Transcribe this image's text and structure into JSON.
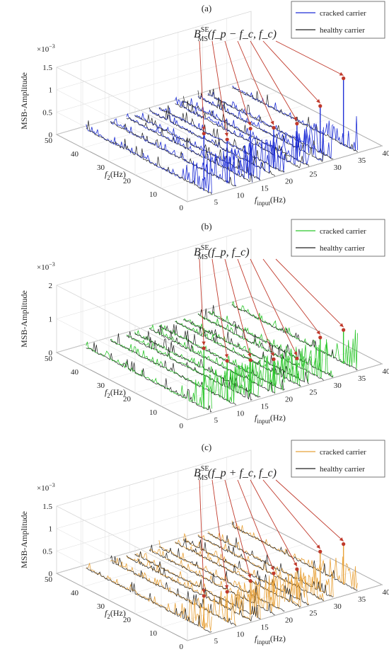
{
  "chart_data": [
    {
      "type": "3d-waterfall-line",
      "title": "(a)",
      "annotation": {
        "base": "B",
        "sup": "SE",
        "sub": "MS",
        "args": "(f_p − f_c, f_c)"
      },
      "zlabel": "MSB-Amplitude",
      "zscale": "×10^-3",
      "z_ticks": [
        "0",
        "0.5",
        "1",
        "1.5"
      ],
      "zlim": [
        0,
        1.5
      ],
      "y_label_main": "f",
      "y_label_sub": "2",
      "y_label_unit": "(Hz)",
      "y_ticks": [
        "0",
        "10",
        "20",
        "30",
        "40",
        "50"
      ],
      "x_label_main": "f",
      "x_label_sub": "input",
      "x_label_unit": "(Hz)",
      "x_ticks": [
        "5",
        "10",
        "15",
        "20",
        "25",
        "30",
        "35",
        "40"
      ],
      "f_input_slices": [
        5,
        10,
        13.3,
        15,
        18,
        20,
        23.3,
        25,
        28,
        30,
        35
      ],
      "series": [
        {
          "name": "cracked carrier",
          "color": "#1f2fd6"
        },
        {
          "name": "healthy carrier",
          "color": "#222222"
        }
      ],
      "peak_slices": [
        5,
        10,
        15,
        20,
        25,
        30,
        35
      ],
      "peak_values": [
        0.85,
        0.65,
        0.7,
        0.6,
        0.55,
        0.7,
        1.0
      ]
    },
    {
      "type": "3d-waterfall-line",
      "title": "(b)",
      "annotation": {
        "base": "B",
        "sup": "SE",
        "sub": "MS",
        "args": "(f_p, f_c)"
      },
      "zlabel": "MSB-Amplitude",
      "zscale": "×10^-3",
      "z_ticks": [
        "0",
        "1",
        "2"
      ],
      "zlim": [
        0,
        2
      ],
      "y_label_main": "f",
      "y_label_sub": "2",
      "y_label_unit": "(Hz)",
      "y_ticks": [
        "0",
        "10",
        "20",
        "30",
        "40",
        "50"
      ],
      "x_label_main": "f",
      "x_label_sub": "input",
      "x_label_unit": "(Hz)",
      "x_ticks": [
        "5",
        "10",
        "15",
        "20",
        "25",
        "30",
        "35",
        "40"
      ],
      "f_input_slices": [
        5,
        10,
        13.3,
        15,
        18,
        20,
        23.3,
        25,
        28,
        30,
        35
      ],
      "series": [
        {
          "name": "cracked carrier",
          "color": "#2bc62b"
        },
        {
          "name": "healthy carrier",
          "color": "#222222"
        }
      ],
      "peak_slices": [
        5,
        10,
        15,
        20,
        25,
        30,
        35
      ],
      "peak_values": [
        0.9,
        0.6,
        0.5,
        0.4,
        0.3,
        0.5,
        0.5
      ]
    },
    {
      "type": "3d-waterfall-line",
      "title": "(c)",
      "annotation": {
        "base": "B",
        "sup": "SE",
        "sub": "MS",
        "args": "(f_p + f_c, f_c)"
      },
      "zlabel": "MSB-Amplitude",
      "zscale": "×10^-3",
      "z_ticks": [
        "0",
        "0.5",
        "1",
        "1.5"
      ],
      "zlim": [
        0,
        1.5
      ],
      "y_label_main": "f",
      "y_label_sub": "2",
      "y_label_unit": "(Hz)",
      "y_ticks": [
        "0",
        "10",
        "20",
        "30",
        "40",
        "50"
      ],
      "x_label_main": "f",
      "x_label_sub": "input",
      "x_label_unit": "(Hz)",
      "x_ticks": [
        "5",
        "10",
        "15",
        "20",
        "25",
        "30",
        "35",
        "40"
      ],
      "f_input_slices": [
        5,
        10,
        13.3,
        15,
        18,
        20,
        23.3,
        25,
        28,
        30,
        35
      ],
      "series": [
        {
          "name": "cracked carrier",
          "color": "#e8a23a"
        },
        {
          "name": "healthy carrier",
          "color": "#222222"
        }
      ],
      "peak_slices": [
        5,
        10,
        15,
        20,
        25,
        30,
        35
      ],
      "peak_values": [
        0.5,
        0.45,
        0.5,
        0.5,
        0.45,
        0.6,
        0.6
      ]
    }
  ]
}
